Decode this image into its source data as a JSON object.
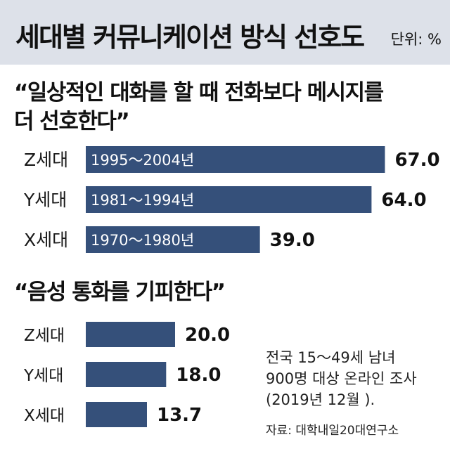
{
  "header": {
    "title": "세대별 커뮤니케이션 방식 선호도",
    "unit": "단위: %"
  },
  "colors": {
    "header_bg": "#dde1e9",
    "bar": "#35507a",
    "bar_text": "#ffffff"
  },
  "chart_data": [
    {
      "type": "bar",
      "orientation": "horizontal",
      "title": "“일상적인 대화를 할 때 전화보다 메시지를 더 선호한다”",
      "title_lines": [
        "“일상적인 대화를 할 때 전화보다 메시지를",
        "더 선호한다”"
      ],
      "categories": [
        "Z세대",
        "Y세대",
        "X세대"
      ],
      "bar_labels": [
        "1995～2004년",
        "1981～1994년",
        "1970～1980년"
      ],
      "values": [
        67.0,
        64.0,
        39.0
      ],
      "value_labels": [
        "67.0",
        "64.0",
        "39.0"
      ],
      "xlim": [
        0,
        70
      ]
    },
    {
      "type": "bar",
      "orientation": "horizontal",
      "title": "“음성 통화를 기피한다”",
      "title_lines": [
        "“음성 통화를 기피한다”"
      ],
      "categories": [
        "Z세대",
        "Y세대",
        "X세대"
      ],
      "values": [
        20.0,
        18.0,
        13.7
      ],
      "value_labels": [
        "20.0",
        "18.0",
        "13.7"
      ],
      "xlim": [
        0,
        70
      ]
    }
  ],
  "note": [
    "전국 15～49세 남녀",
    "900명 대상 온라인 조사",
    "(2019년 12월 )."
  ],
  "source": "자료: 대학내일20대연구소"
}
